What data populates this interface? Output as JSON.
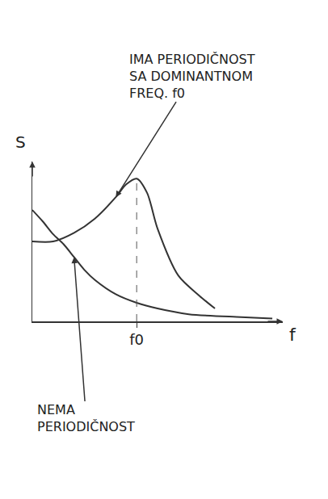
{
  "chart_data": {
    "type": "line",
    "x_label": "f",
    "y_label": "S",
    "xlim": [
      0,
      2.4
    ],
    "ylim": [
      0,
      1.12
    ],
    "xticks": [
      {
        "value": 1,
        "label": "f0"
      }
    ],
    "yticks": [],
    "tick_labels": "x",
    "grid": false,
    "series": [
      {
        "name": "NEMA PERIODIČNOST",
        "color": "#333333",
        "line_style": "solid",
        "x": [
          0,
          0.1,
          0.2,
          0.3,
          0.4,
          0.5,
          0.6,
          0.8,
          1.0,
          1.2,
          1.5,
          2.0,
          2.3
        ],
        "values": [
          0.78,
          0.7,
          0.61,
          0.54,
          0.45,
          0.36,
          0.29,
          0.19,
          0.13,
          0.09,
          0.05,
          0.03,
          0.02
        ]
      },
      {
        "name": "IMA PERIODIČNOST SA DOMINANTNOM FREQ. f0",
        "color": "#333333",
        "line_style": "solid",
        "x": [
          0,
          0.2,
          0.4,
          0.6,
          0.8,
          0.9,
          1.0,
          1.1,
          1.2,
          1.4,
          1.6,
          1.75
        ],
        "values": [
          0.56,
          0.56,
          0.62,
          0.72,
          0.87,
          0.96,
          1.0,
          0.9,
          0.65,
          0.32,
          0.18,
          0.09
        ]
      }
    ]
  }
}
